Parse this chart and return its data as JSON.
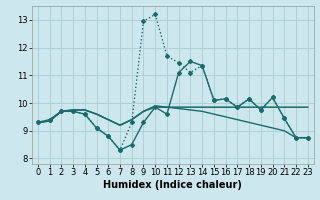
{
  "xlabel": "Humidex (Indice chaleur)",
  "bg_color": "#cce8ee",
  "grid_color": "#b0d0d8",
  "line_color": "#1a6b6b",
  "xlim": [
    -0.5,
    23.5
  ],
  "ylim": [
    7.8,
    13.5
  ],
  "yticks": [
    8,
    9,
    10,
    11,
    12,
    13
  ],
  "xticks": [
    0,
    1,
    2,
    3,
    4,
    5,
    6,
    7,
    8,
    9,
    10,
    11,
    12,
    13,
    14,
    15,
    16,
    17,
    18,
    19,
    20,
    21,
    22,
    23
  ],
  "line1_x": [
    0,
    1,
    2,
    3,
    4,
    5,
    6,
    7,
    8,
    9,
    10,
    11,
    12,
    13,
    14,
    15,
    16,
    17,
    18,
    19,
    20,
    21,
    22,
    23
  ],
  "line1_y": [
    9.3,
    9.4,
    9.7,
    9.7,
    9.6,
    9.1,
    8.8,
    8.3,
    8.5,
    9.3,
    9.85,
    9.6,
    11.1,
    11.5,
    11.35,
    10.1,
    10.15,
    9.85,
    10.15,
    9.75,
    10.2,
    9.45,
    8.75,
    8.75
  ],
  "line2_x": [
    0,
    1,
    2,
    3,
    4,
    5,
    6,
    7,
    8,
    9,
    10,
    11,
    12,
    13,
    14,
    15,
    16,
    17,
    18,
    19,
    20,
    21,
    22,
    23
  ],
  "line2_y": [
    9.3,
    9.4,
    9.7,
    9.7,
    9.6,
    9.1,
    8.8,
    8.3,
    9.3,
    12.95,
    13.2,
    11.7,
    11.45,
    11.1,
    11.35,
    10.1,
    10.15,
    9.85,
    10.15,
    9.75,
    10.2,
    9.45,
    8.75,
    8.75
  ],
  "line3_x": [
    0,
    1,
    2,
    3,
    4,
    5,
    6,
    7,
    8,
    9,
    10,
    11,
    12,
    13,
    14,
    15,
    16,
    17,
    18,
    19,
    20,
    21,
    22,
    23
  ],
  "line3_y": [
    9.3,
    9.35,
    9.7,
    9.75,
    9.75,
    9.6,
    9.4,
    9.2,
    9.4,
    9.7,
    9.85,
    9.85,
    9.85,
    9.85,
    9.85,
    9.85,
    9.85,
    9.85,
    9.85,
    9.85,
    9.85,
    9.85,
    9.85,
    9.85
  ],
  "line4_x": [
    0,
    1,
    2,
    3,
    4,
    5,
    6,
    7,
    8,
    9,
    10,
    11,
    12,
    13,
    14,
    15,
    16,
    17,
    18,
    19,
    20,
    21,
    22,
    23
  ],
  "line4_y": [
    9.3,
    9.35,
    9.7,
    9.75,
    9.75,
    9.6,
    9.4,
    9.2,
    9.4,
    9.7,
    9.9,
    9.85,
    9.8,
    9.75,
    9.7,
    9.6,
    9.5,
    9.4,
    9.3,
    9.2,
    9.1,
    9.0,
    8.75,
    8.75
  ]
}
